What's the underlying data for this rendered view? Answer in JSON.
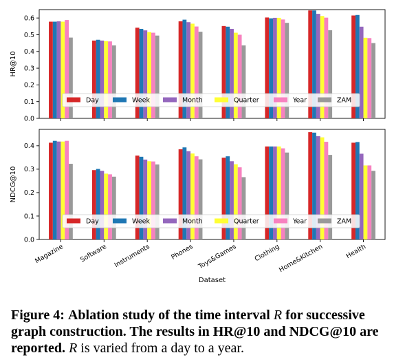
{
  "caption": {
    "label": "Figure 4:",
    "part1": "Ablation study of the time interval",
    "var1": "R",
    "part2": "for successive graph construction. The results in HR@10 and NDCG@10 are reported.",
    "var2": "R",
    "part3": "is varied from a day to a year."
  },
  "chart_data": [
    {
      "type": "bar",
      "ylabel": "HR@10",
      "xlabel": "",
      "ylim": [
        0,
        0.65
      ],
      "yticks": [
        "0.0",
        "0.1",
        "0.2",
        "0.3",
        "0.4",
        "0.5",
        "0.6"
      ],
      "categories": [
        "Magazine",
        "Software",
        "Instruments",
        "Phones",
        "Toys&Games",
        "Clothing",
        "Home&Kitchen",
        "Health"
      ],
      "legend_placement": "lower-center",
      "series": [
        {
          "name": "Day",
          "color": "#d62728",
          "values": [
            0.578,
            0.465,
            0.542,
            0.58,
            0.552,
            0.603,
            0.645,
            0.615
          ]
        },
        {
          "name": "Week",
          "color": "#1f77b4",
          "values": [
            0.578,
            0.47,
            0.535,
            0.59,
            0.548,
            0.598,
            0.645,
            0.618
          ]
        },
        {
          "name": "Month",
          "color": "#9467bd",
          "values": [
            0.58,
            0.465,
            0.526,
            0.575,
            0.535,
            0.601,
            0.625,
            0.548
          ]
        },
        {
          "name": "Quarter",
          "color": "#ffff33",
          "values": [
            0.578,
            0.462,
            0.516,
            0.566,
            0.512,
            0.601,
            0.612,
            0.482
          ]
        },
        {
          "name": "Year",
          "color": "#f781bf",
          "values": [
            0.588,
            0.46,
            0.512,
            0.549,
            0.5,
            0.591,
            0.602,
            0.48
          ]
        },
        {
          "name": "ZAM",
          "color": "#999999",
          "values": [
            0.483,
            0.436,
            0.495,
            0.518,
            0.436,
            0.571,
            0.527,
            0.45
          ]
        }
      ]
    },
    {
      "type": "bar",
      "ylabel": "NDCG@10",
      "xlabel": "Dataset",
      "ylim": [
        0,
        0.47
      ],
      "yticks": [
        "0.0",
        "0.1",
        "0.2",
        "0.3",
        "0.4"
      ],
      "categories": [
        "Magazine",
        "Software",
        "Instruments",
        "Phones",
        "Toys&Games",
        "Clothing",
        "Home&Kitchen",
        "Health"
      ],
      "legend_placement": "lower-center",
      "series": [
        {
          "name": "Day",
          "color": "#d62728",
          "values": [
            0.413,
            0.296,
            0.358,
            0.385,
            0.349,
            0.397,
            0.458,
            0.413
          ]
        },
        {
          "name": "Week",
          "color": "#1f77b4",
          "values": [
            0.421,
            0.301,
            0.353,
            0.393,
            0.355,
            0.397,
            0.456,
            0.416
          ]
        },
        {
          "name": "Month",
          "color": "#9467bd",
          "values": [
            0.418,
            0.293,
            0.341,
            0.377,
            0.334,
            0.397,
            0.441,
            0.366
          ]
        },
        {
          "name": "Quarter",
          "color": "#ffff33",
          "values": [
            0.418,
            0.281,
            0.334,
            0.367,
            0.321,
            0.397,
            0.436,
            0.316
          ]
        },
        {
          "name": "Year",
          "color": "#f781bf",
          "values": [
            0.421,
            0.278,
            0.333,
            0.355,
            0.308,
            0.389,
            0.417,
            0.316
          ]
        },
        {
          "name": "ZAM",
          "color": "#999999",
          "values": [
            0.323,
            0.268,
            0.32,
            0.342,
            0.266,
            0.371,
            0.361,
            0.293
          ]
        }
      ]
    }
  ]
}
